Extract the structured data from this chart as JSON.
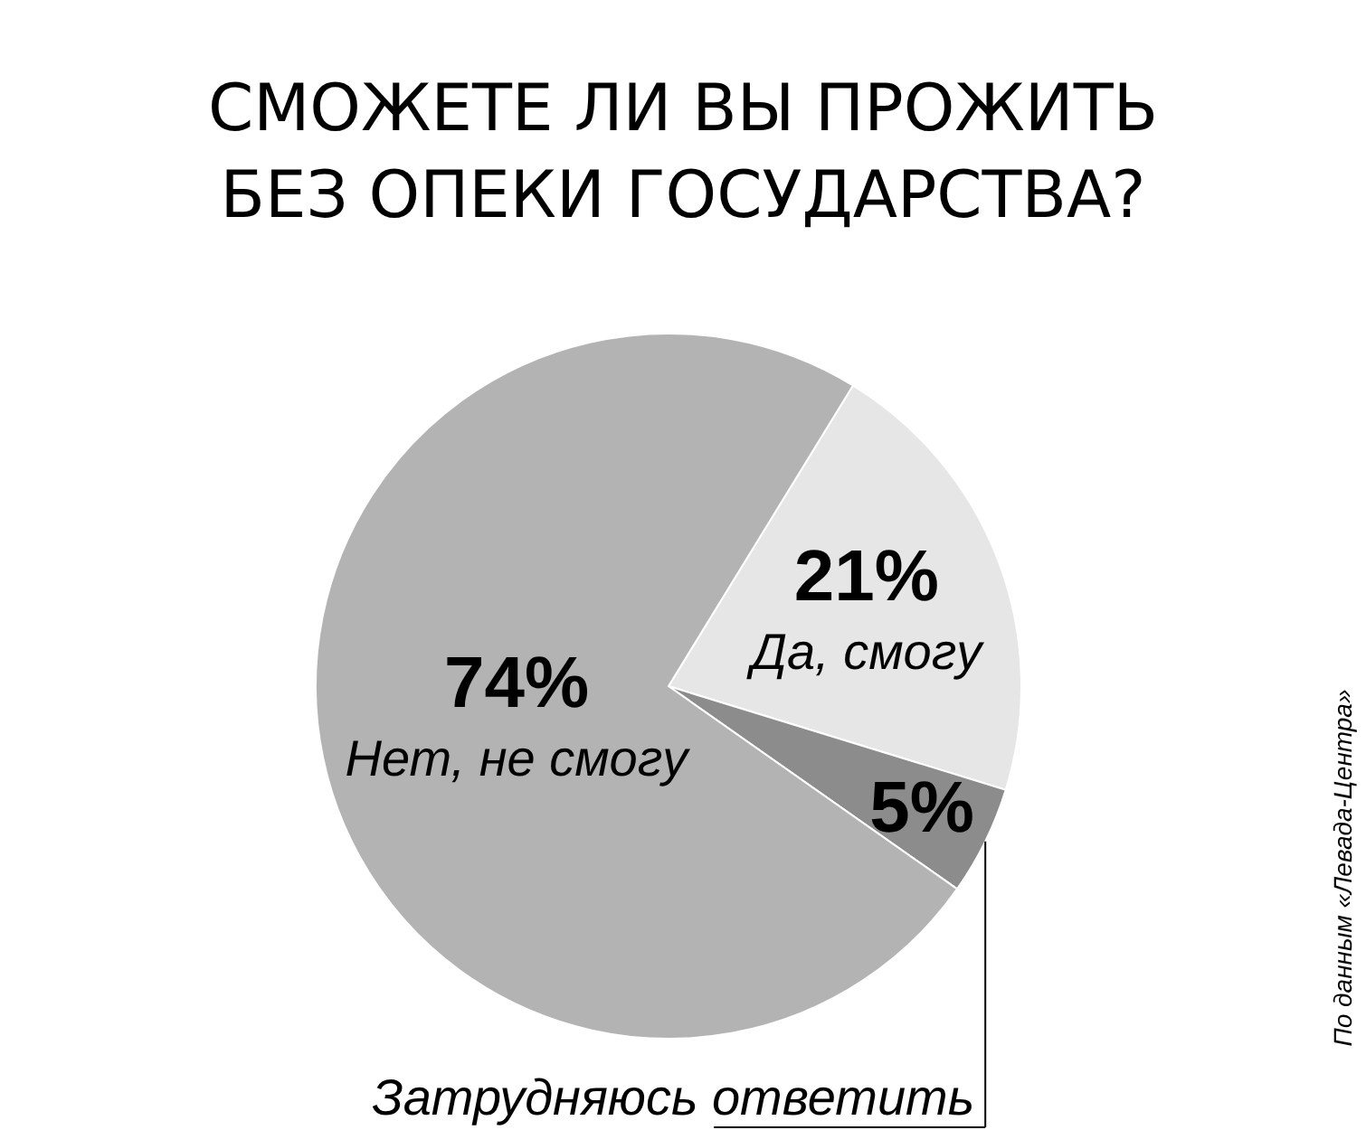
{
  "chart_data": {
    "type": "pie",
    "title": "СМОЖЕТЕ ЛИ ВЫ ПРОЖИТЬ\nБЕЗ ОПЕКИ ГОСУДАРСТВА?",
    "categories": [
      "Да, смогу",
      "Затрудняюсь ответить",
      "Нет, не смогу"
    ],
    "values": [
      21,
      5,
      74
    ],
    "colors": [
      "#e6e6e6",
      "#8c8c8c",
      "#b3b3b3"
    ],
    "value_labels": [
      "21%",
      "5%",
      "74%"
    ],
    "annotations": [
      "По данным «Левада-Центра»"
    ]
  }
}
